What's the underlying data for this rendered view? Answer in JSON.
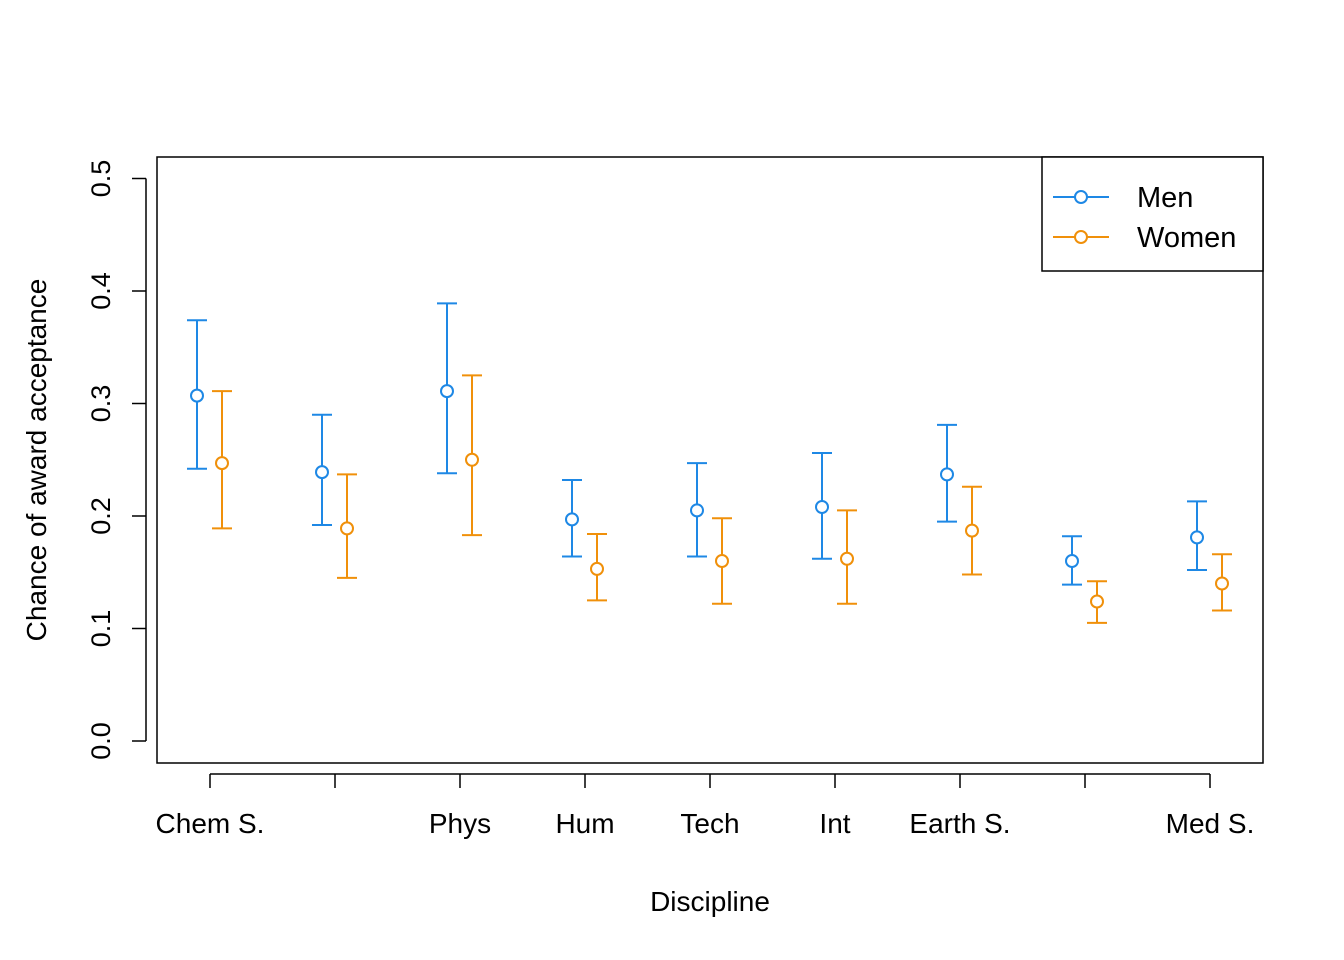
{
  "chart_data": {
    "type": "scatter",
    "title": "",
    "xlabel": "Discipline",
    "ylabel": "Chance of award acceptance",
    "ylim": [
      0,
      0.5
    ],
    "yticks": [
      0.0,
      0.1,
      0.2,
      0.3,
      0.4,
      0.5
    ],
    "ytick_labels": [
      "0.0",
      "0.1",
      "0.2",
      "0.3",
      "0.4",
      "0.5"
    ],
    "categories": [
      "Chem S.",
      "",
      "Phys",
      "Hum",
      "Tech",
      "Int",
      "Earth S.",
      "",
      "Med S."
    ],
    "grid": false,
    "legend": {
      "placement": "top-right",
      "entries": [
        "Men",
        "Women"
      ]
    },
    "series": [
      {
        "name": "Men",
        "color": "#1E88E5",
        "values": [
          0.307,
          0.239,
          0.311,
          0.197,
          0.205,
          0.208,
          0.237,
          0.16,
          0.181
        ],
        "lower": [
          0.242,
          0.192,
          0.238,
          0.164,
          0.164,
          0.162,
          0.195,
          0.139,
          0.152
        ],
        "upper": [
          0.374,
          0.29,
          0.389,
          0.232,
          0.247,
          0.256,
          0.281,
          0.182,
          0.213
        ]
      },
      {
        "name": "Women",
        "color": "#F0900A",
        "values": [
          0.247,
          0.189,
          0.25,
          0.153,
          0.16,
          0.162,
          0.187,
          0.124,
          0.14
        ],
        "lower": [
          0.189,
          0.145,
          0.183,
          0.125,
          0.122,
          0.122,
          0.148,
          0.105,
          0.116
        ],
        "upper": [
          0.311,
          0.237,
          0.325,
          0.184,
          0.198,
          0.205,
          0.226,
          0.142,
          0.166
        ]
      }
    ]
  }
}
